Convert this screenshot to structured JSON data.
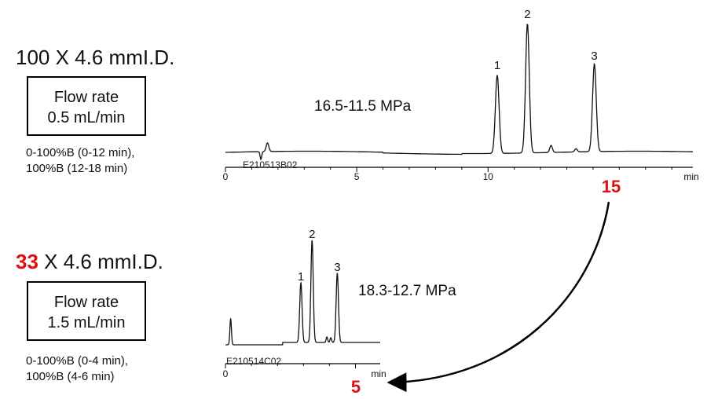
{
  "panels": [
    {
      "column_prefix": "",
      "column_highlight": "100",
      "column_rest": " X 4.6 mmI.D.",
      "flow_label": "Flow rate",
      "flow_value": "0.5 mL/min",
      "gradient_line1": "0-100%B (0-12 min),",
      "gradient_line2": "100%B (12-18 min)",
      "pressure": "16.5-11.5 MPa",
      "file_id": "E210513B02"
    },
    {
      "column_highlight": "33",
      "column_rest": " X 4.6 mmI.D.",
      "flow_label": "Flow rate",
      "flow_value": "1.5 mL/min",
      "gradient_line1": "0-100%B (0-4 min),",
      "gradient_line2": "100%B (4-6 min)",
      "pressure": "18.3-12.7 MPa",
      "file_id": "E210514C02"
    }
  ],
  "callouts": {
    "from_label": "15",
    "to_label": "5",
    "highlight_color": "#e01010"
  },
  "chart_data": [
    {
      "type": "line",
      "xlabel": "min",
      "xlim": [
        0,
        17.8
      ],
      "x_ticks": [
        0,
        5,
        10
      ],
      "x_tick_labels": [
        "0",
        "5",
        "10"
      ],
      "peaks": [
        {
          "label": "1",
          "x": 10.35,
          "height": 100
        },
        {
          "label": "2",
          "x": 11.5,
          "height": 165
        },
        {
          "label": "3",
          "x": 14.05,
          "height": 112
        }
      ],
      "minor_peaks": [
        {
          "x": 1.6,
          "height": 11
        },
        {
          "x": 12.4,
          "height": 9
        },
        {
          "x": 13.35,
          "height": 4
        }
      ],
      "baseline_note": "injection disturbance near 1.2-1.7 min"
    },
    {
      "type": "line",
      "xlabel": "min",
      "xlim": [
        0,
        5.95
      ],
      "x_ticks": [
        0,
        5
      ],
      "x_tick_labels": [
        "0",
        ""
      ],
      "peaks": [
        {
          "label": "1",
          "x": 2.9,
          "height": 76
        },
        {
          "label": "2",
          "x": 3.33,
          "height": 130
        },
        {
          "label": "3",
          "x": 4.3,
          "height": 88
        }
      ],
      "minor_peaks": [
        {
          "x": 0.2,
          "height": 33
        },
        {
          "x": 3.9,
          "height": 7
        },
        {
          "x": 4.05,
          "height": 6
        }
      ]
    }
  ]
}
